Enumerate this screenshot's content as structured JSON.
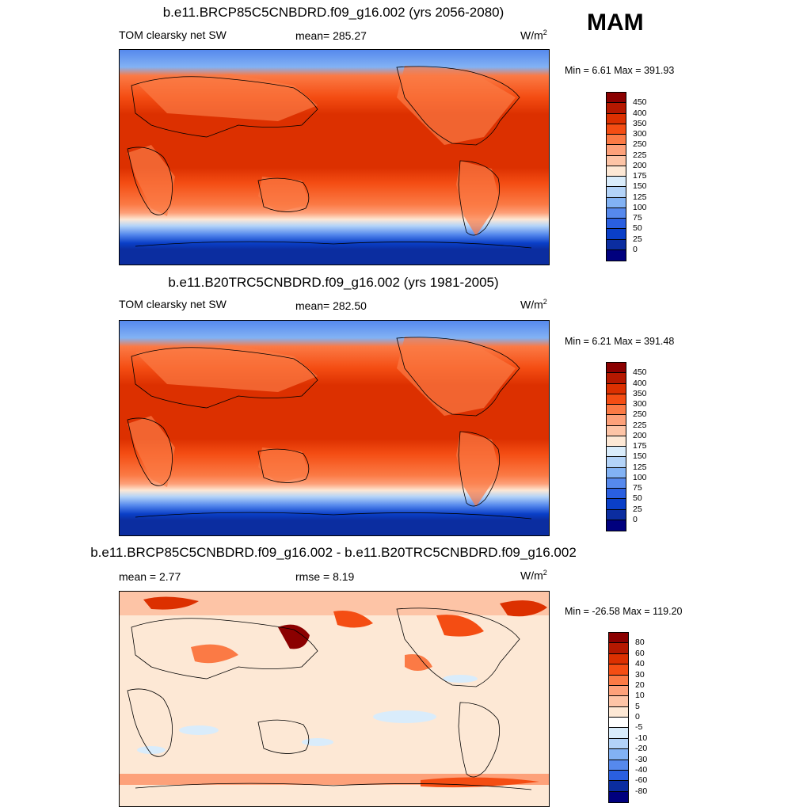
{
  "season": "MAM",
  "panels": [
    {
      "title": "b.e11.BRCP85C5CNBDRD.f09_g16.002 (yrs 2056-2080)",
      "left_label": "TOM clearsky net SW",
      "center_label": "mean= 285.27",
      "center_label2": "",
      "units": "W/m",
      "units_sup": "2",
      "minmax": "Min =   6.61 Max = 391.93",
      "colorbar": {
        "labels": [
          "450",
          "400",
          "350",
          "300",
          "250",
          "225",
          "200",
          "175",
          "150",
          "125",
          "100",
          "75",
          "50",
          "25",
          "0"
        ],
        "colors": [
          "#8b0000",
          "#b51800",
          "#dc3000",
          "#f44d13",
          "#fb7a45",
          "#fda17a",
          "#fdc4a6",
          "#fde8d5",
          "#d9ecfb",
          "#b3d3f8",
          "#82b2f4",
          "#5689ed",
          "#2a5fe0",
          "#0a3fc8",
          "#0b2da0",
          "#00007e"
        ]
      }
    },
    {
      "title": "b.e11.B20TRC5CNBDRD.f09_g16.002 (yrs 1981-2005)",
      "left_label": "TOM clearsky net SW",
      "center_label": "mean= 282.50",
      "center_label2": "",
      "units": "W/m",
      "units_sup": "2",
      "minmax": "Min =   6.21 Max = 391.48",
      "colorbar": {
        "labels": [
          "450",
          "400",
          "350",
          "300",
          "250",
          "225",
          "200",
          "175",
          "150",
          "125",
          "100",
          "75",
          "50",
          "25",
          "0"
        ],
        "colors": [
          "#8b0000",
          "#b51800",
          "#dc3000",
          "#f44d13",
          "#fb7a45",
          "#fda17a",
          "#fdc4a6",
          "#fde8d5",
          "#d9ecfb",
          "#b3d3f8",
          "#82b2f4",
          "#5689ed",
          "#2a5fe0",
          "#0a3fc8",
          "#0b2da0",
          "#00007e"
        ]
      }
    },
    {
      "title": "b.e11.BRCP85C5CNBDRD.f09_g16.002 - b.e11.B20TRC5CNBDRD.f09_g16.002",
      "left_label": "mean =   2.77",
      "center_label": "rmse =   8.19",
      "center_label2": "",
      "units": "W/m",
      "units_sup": "2",
      "minmax": "Min = -26.58 Max = 119.20",
      "colorbar": {
        "labels": [
          "80",
          "60",
          "40",
          "30",
          "20",
          "10",
          "5",
          "0",
          "-5",
          "-10",
          "-20",
          "-30",
          "-40",
          "-60",
          "-80"
        ],
        "colors": [
          "#8b0000",
          "#b51800",
          "#dc3000",
          "#f44d13",
          "#fb7a45",
          "#fda17a",
          "#fdc4a6",
          "#fde8d5",
          "#ffffff",
          "#d9ecfb",
          "#b3d3f8",
          "#82b2f4",
          "#5689ed",
          "#2a5fe0",
          "#0b2da0",
          "#00007e"
        ]
      }
    }
  ]
}
